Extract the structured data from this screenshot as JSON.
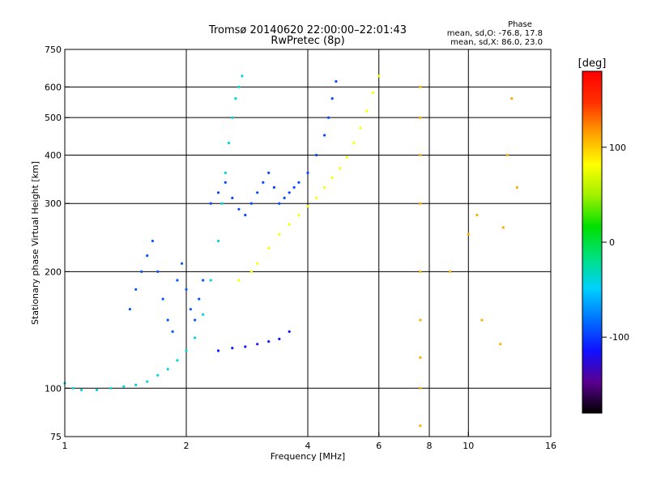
{
  "chart_data": {
    "type": "scatter",
    "title": "Tromsø 20140620 22:00:00–22:01:43",
    "subtitle": "RwPretec (8p)",
    "xlabel": "Frequency [MHz]",
    "ylabel": "Stationary phase Virtual Height [km]",
    "x_scale": "log",
    "y_scale": "log",
    "xlim": [
      1,
      16
    ],
    "ylim": [
      75,
      750
    ],
    "x_ticks": [
      1,
      2,
      4,
      6,
      8,
      10,
      16
    ],
    "x_ticklabels": [
      "1",
      "2",
      "4",
      "6",
      "8",
      "10",
      "16"
    ],
    "x_gridlines": [
      2,
      4,
      6,
      8,
      10
    ],
    "y_ticks": [
      75,
      100,
      200,
      300,
      400,
      500,
      600,
      750
    ],
    "y_ticklabels": [
      "75",
      "100",
      "200",
      "300",
      "400",
      "500",
      "600",
      "750"
    ],
    "y_gridlines": [
      100,
      200,
      300,
      400,
      500,
      600
    ],
    "grid": true,
    "stats": {
      "heading": "Phase",
      "line_o": "mean, sd,O: -76.8, 17.8",
      "line_x": "mean, sd,X:  86.0, 23.0"
    },
    "colorbar": {
      "label": "[deg]",
      "range": [
        -180,
        180
      ],
      "ticks": [
        100,
        0,
        -100
      ],
      "ticklabels": [
        "100",
        "0",
        "-100"
      ],
      "colors": [
        "#000000",
        "#5a0090",
        "#1010ff",
        "#0070ff",
        "#00d0ff",
        "#00e080",
        "#00e000",
        "#a0f000",
        "#ffff00",
        "#ffa000",
        "#ff3000",
        "#ff0000"
      ]
    },
    "series": [
      {
        "values": [
          [
            1.0,
            103
          ],
          [
            1.05,
            100
          ],
          [
            1.1,
            99
          ],
          [
            1.2,
            99
          ],
          [
            1.3,
            100
          ],
          [
            1.4,
            101
          ],
          [
            1.5,
            102
          ],
          [
            1.6,
            104
          ],
          [
            1.7,
            108
          ],
          [
            1.8,
            112
          ],
          [
            1.9,
            118
          ],
          [
            2.0,
            125
          ],
          [
            2.1,
            135
          ],
          [
            2.2,
            155
          ],
          [
            2.3,
            190
          ],
          [
            2.4,
            240
          ],
          [
            2.45,
            300
          ],
          [
            2.5,
            360
          ],
          [
            2.55,
            430
          ],
          [
            2.6,
            500
          ],
          [
            2.65,
            560
          ],
          [
            2.7,
            600
          ],
          [
            2.75,
            640
          ]
        ],
        "phase": -40
      },
      {
        "values": [
          [
            1.45,
            160
          ],
          [
            1.5,
            180
          ],
          [
            1.55,
            200
          ],
          [
            1.6,
            220
          ],
          [
            1.65,
            240
          ],
          [
            1.7,
            200
          ],
          [
            1.75,
            170
          ],
          [
            1.8,
            150
          ],
          [
            1.85,
            140
          ],
          [
            1.9,
            190
          ],
          [
            1.95,
            210
          ],
          [
            2.0,
            180
          ],
          [
            2.05,
            160
          ],
          [
            2.1,
            150
          ],
          [
            2.15,
            170
          ],
          [
            2.2,
            190
          ]
        ],
        "phase": -90
      },
      {
        "values": [
          [
            2.3,
            300
          ],
          [
            2.4,
            320
          ],
          [
            2.5,
            340
          ],
          [
            2.6,
            310
          ],
          [
            2.7,
            290
          ],
          [
            2.8,
            280
          ],
          [
            2.9,
            300
          ],
          [
            3.0,
            320
          ],
          [
            3.1,
            340
          ],
          [
            3.2,
            360
          ],
          [
            3.3,
            330
          ],
          [
            3.4,
            300
          ],
          [
            3.5,
            310
          ],
          [
            3.6,
            320
          ],
          [
            3.7,
            330
          ],
          [
            3.8,
            340
          ],
          [
            4.0,
            360
          ],
          [
            4.2,
            400
          ],
          [
            4.4,
            450
          ],
          [
            4.5,
            500
          ],
          [
            4.6,
            560
          ],
          [
            4.7,
            620
          ]
        ],
        "phase": -95
      },
      {
        "values": [
          [
            2.7,
            190
          ],
          [
            2.9,
            200
          ],
          [
            3.0,
            210
          ],
          [
            3.2,
            230
          ],
          [
            3.4,
            250
          ],
          [
            3.6,
            265
          ],
          [
            3.8,
            280
          ],
          [
            4.0,
            295
          ],
          [
            4.2,
            310
          ],
          [
            4.4,
            330
          ],
          [
            4.6,
            350
          ],
          [
            4.8,
            370
          ],
          [
            5.0,
            395
          ],
          [
            5.2,
            430
          ],
          [
            5.4,
            470
          ],
          [
            5.6,
            520
          ],
          [
            5.8,
            580
          ],
          [
            6.0,
            640
          ]
        ],
        "phase": 80
      },
      {
        "values": [
          [
            2.4,
            125
          ],
          [
            2.6,
            127
          ],
          [
            2.8,
            128
          ],
          [
            3.0,
            130
          ],
          [
            3.2,
            132
          ],
          [
            3.4,
            134
          ],
          [
            3.6,
            140
          ]
        ],
        "phase": -110
      },
      {
        "values": [
          [
            7.6,
            80
          ],
          [
            7.6,
            100
          ],
          [
            7.6,
            120
          ],
          [
            7.6,
            150
          ],
          [
            7.6,
            200
          ],
          [
            7.6,
            300
          ],
          [
            7.6,
            400
          ],
          [
            7.6,
            500
          ],
          [
            7.6,
            600
          ],
          [
            12.0,
            130
          ],
          [
            12.2,
            260
          ],
          [
            12.5,
            400
          ],
          [
            12.8,
            560
          ],
          [
            13.2,
            330
          ],
          [
            10.8,
            150
          ],
          [
            10.5,
            280
          ],
          [
            10.0,
            250
          ],
          [
            9.0,
            200
          ]
        ],
        "phase": 110
      }
    ]
  }
}
